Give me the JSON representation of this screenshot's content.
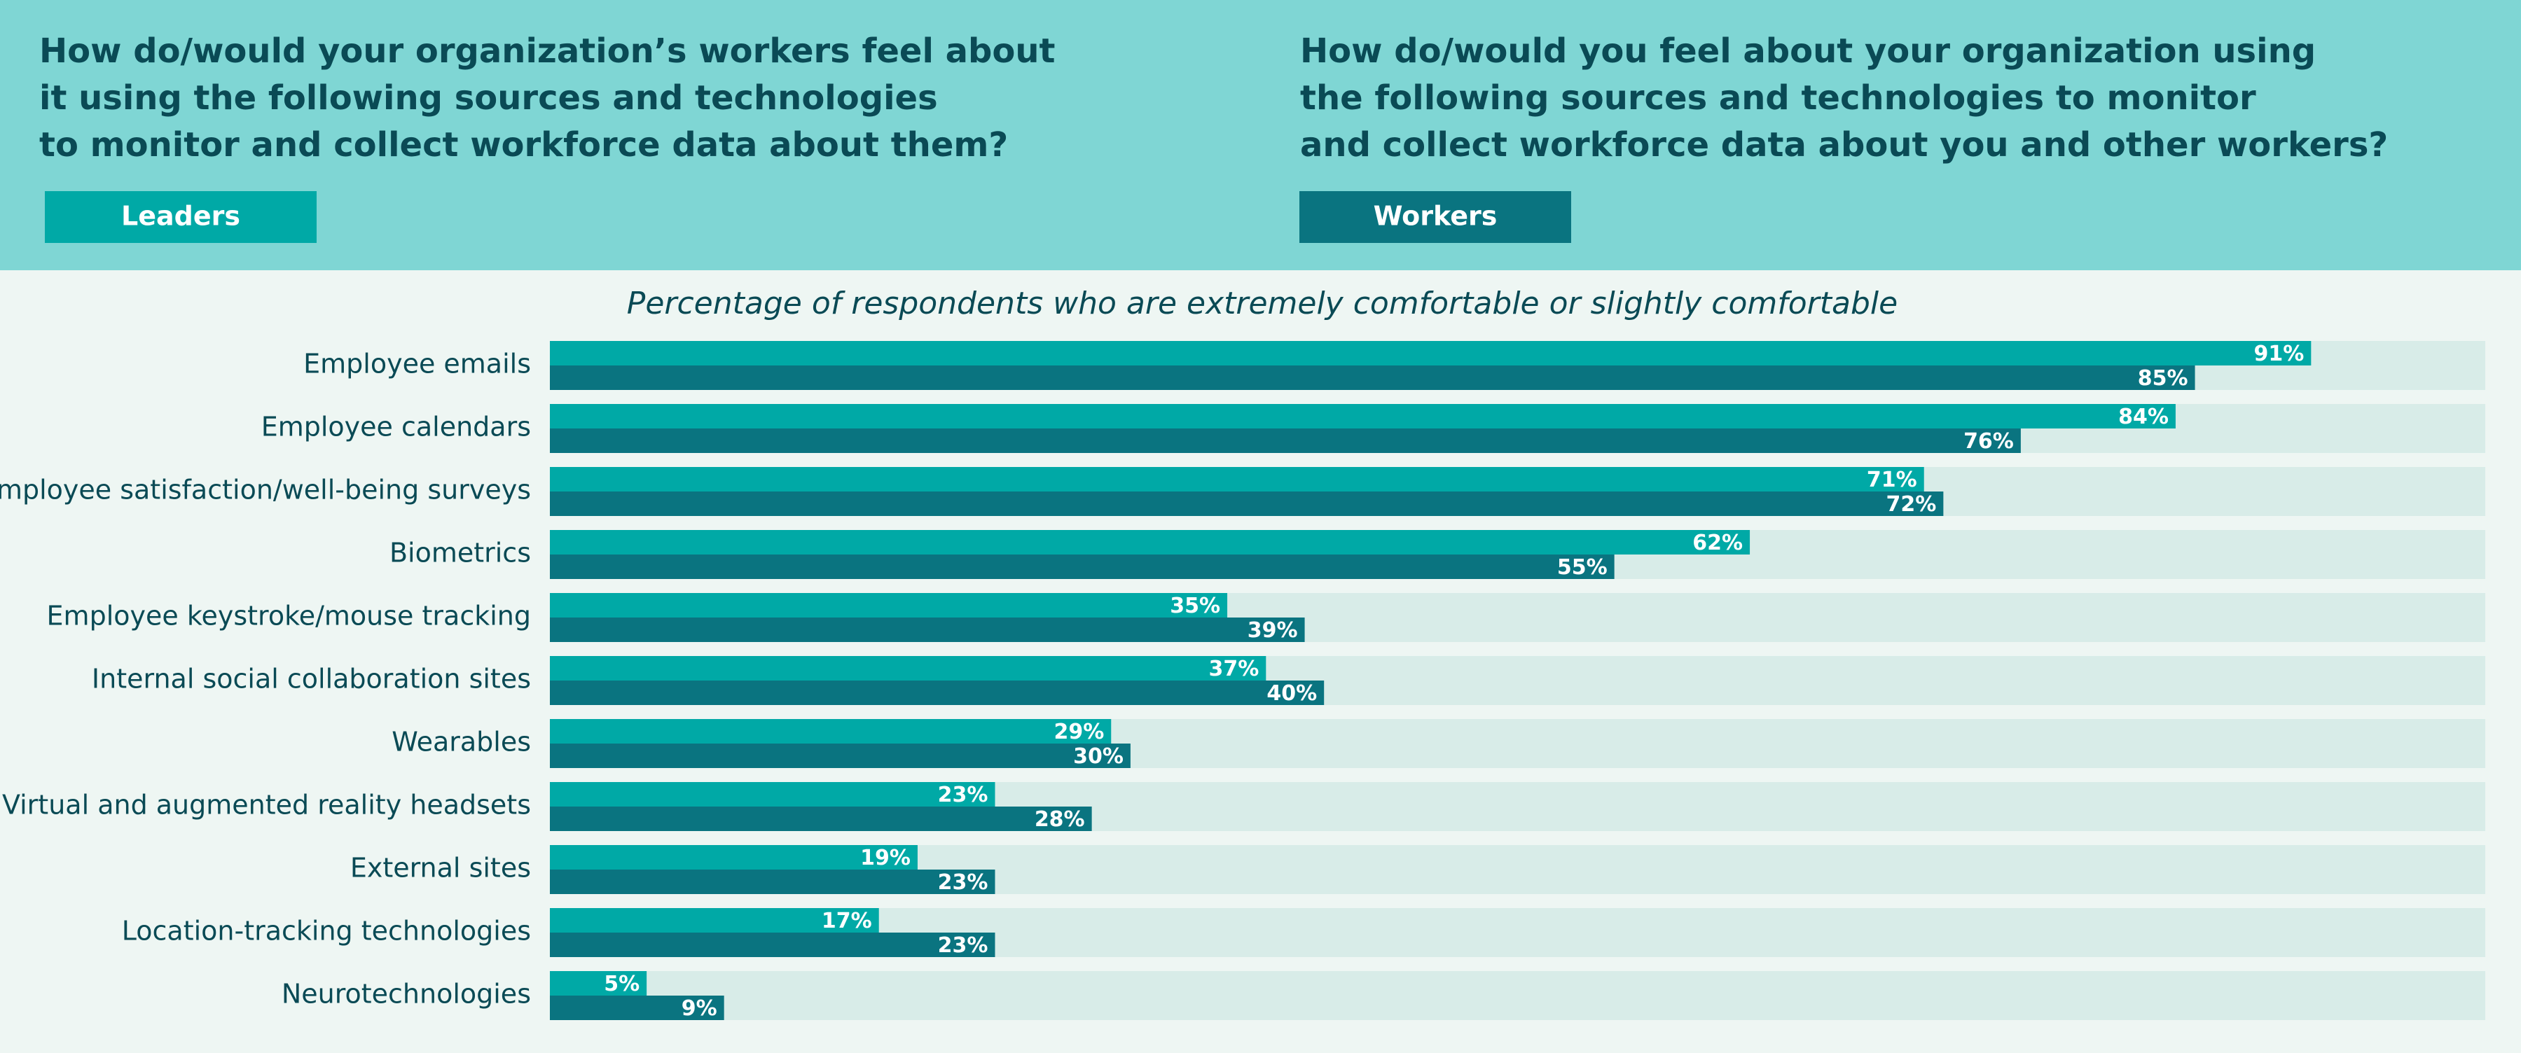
{
  "chart_data": {
    "type": "hbar",
    "headings": [
      [
        "How do/would your organization’s workers feel about",
        "it using the following sources and technologies",
        "to monitor and collect workforce data about them?"
      ],
      [
        "How do/would you feel about your organization using",
        "the following sources and technologies to monitor",
        "and collect workforce data about you and other workers?"
      ]
    ],
    "subtitle": "Percentage of respondents who are extremely comfortable or slightly comfortable",
    "categories": [
      "Employee emails",
      "Employee calendars",
      "Employee satisfaction/well-being surveys",
      "Biometrics",
      "Employee keystroke/mouse tracking",
      "Internal social collaboration sites",
      "Wearables",
      "Virtual and augmented reality headsets",
      "External sites",
      "Location-tracking technologies",
      "Neurotechnologies"
    ],
    "series": [
      {
        "name": "Leaders",
        "color": "#00a9a6",
        "values": [
          91,
          84,
          71,
          62,
          35,
          37,
          29,
          23,
          19,
          17,
          5
        ],
        "value_labels": [
          "91%",
          "84%",
          "71%",
          "62%",
          "35%",
          "37%",
          "29%",
          "23%",
          "19%",
          "17%",
          "5%"
        ]
      },
      {
        "name": "Workers",
        "color": "#0a7480",
        "values": [
          85,
          76,
          72,
          55,
          39,
          40,
          30,
          28,
          23,
          23,
          9
        ],
        "value_labels": [
          "85%",
          "76%",
          "72%",
          "55%",
          "39%",
          "40%",
          "30%",
          "28%",
          "23%",
          "23%",
          "9%"
        ]
      }
    ],
    "xlim": [
      0,
      100
    ]
  }
}
